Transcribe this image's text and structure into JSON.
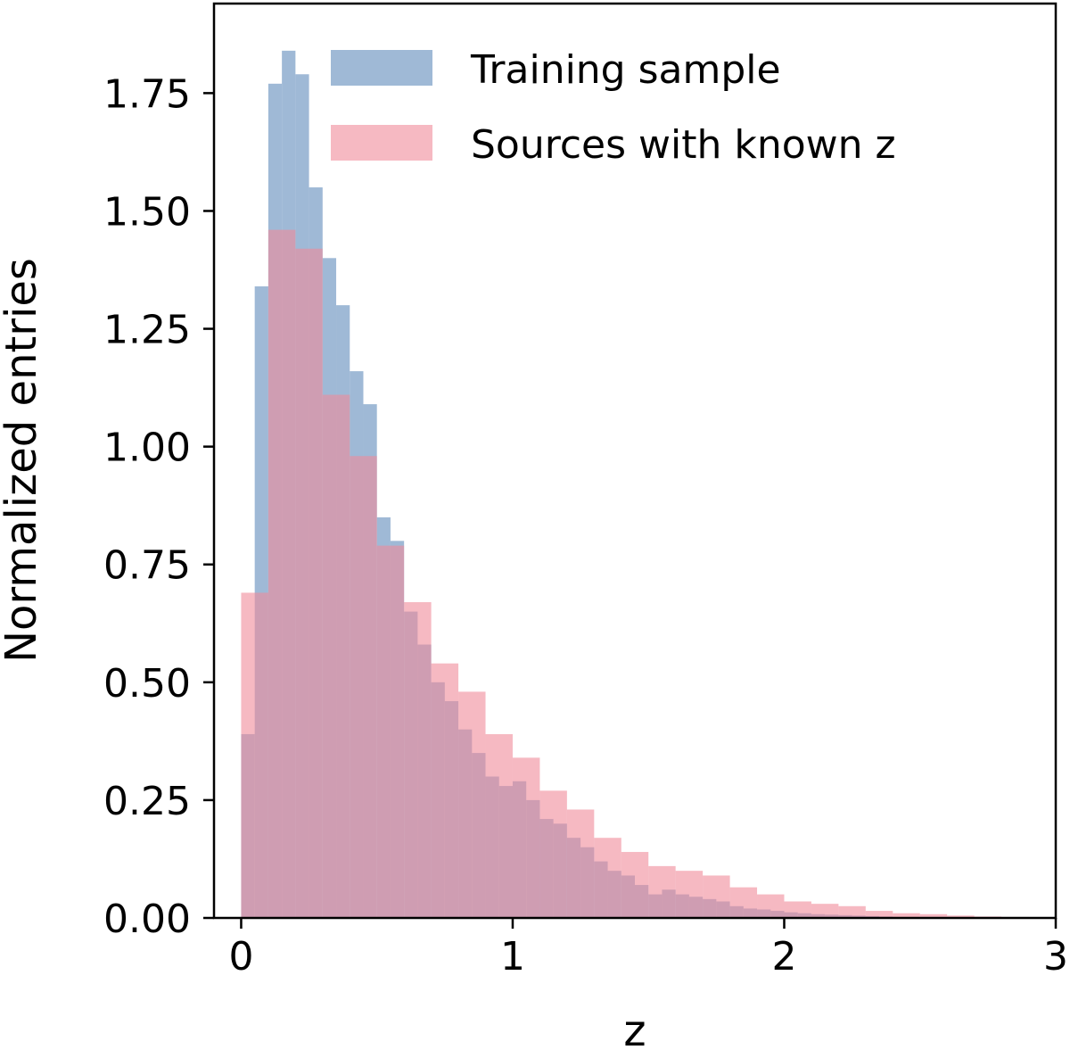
{
  "chart_data": {
    "type": "bar",
    "xlabel": "z",
    "ylabel": "Normalized entries",
    "xlim": [
      -0.1,
      3.0
    ],
    "ylim": [
      0,
      1.94
    ],
    "xticks": [
      0,
      1,
      2,
      3
    ],
    "xtick_labels": [
      "0",
      "1",
      "2",
      "3"
    ],
    "yticks": [
      0,
      0.25,
      0.5,
      0.75,
      1.0,
      1.25,
      1.5,
      1.75
    ],
    "ytick_labels": [
      "0.00",
      "0.25",
      "0.50",
      "0.75",
      "1.00",
      "1.25",
      "1.50",
      "1.75"
    ],
    "legend_position": "top-right",
    "series": [
      {
        "name": "Training sample",
        "color": "#7fa2c8",
        "opacity": 0.75,
        "bin_edges": [
          0.0,
          0.05,
          0.1,
          0.15,
          0.2,
          0.25,
          0.3,
          0.35,
          0.4,
          0.45,
          0.5,
          0.55,
          0.6,
          0.65,
          0.7,
          0.75,
          0.8,
          0.85,
          0.9,
          0.95,
          1.0,
          1.05,
          1.1,
          1.15,
          1.2,
          1.25,
          1.3,
          1.35,
          1.4,
          1.45,
          1.5,
          1.55,
          1.6,
          1.65,
          1.7,
          1.75,
          1.8,
          1.85,
          1.9,
          1.95,
          2.0,
          2.05,
          2.1,
          2.15,
          2.2,
          2.25,
          2.3,
          2.35,
          2.4,
          2.45,
          2.5,
          2.55,
          2.6,
          2.65,
          2.7,
          2.75,
          2.8,
          2.85
        ],
        "values": [
          0.39,
          1.34,
          1.77,
          1.84,
          1.79,
          1.55,
          1.4,
          1.3,
          1.16,
          1.09,
          0.85,
          0.8,
          0.65,
          0.58,
          0.5,
          0.46,
          0.4,
          0.35,
          0.3,
          0.28,
          0.29,
          0.25,
          0.21,
          0.2,
          0.17,
          0.15,
          0.12,
          0.1,
          0.09,
          0.07,
          0.05,
          0.06,
          0.05,
          0.045,
          0.04,
          0.035,
          0.025,
          0.02,
          0.018,
          0.015,
          0.012,
          0.01,
          0.008,
          0.007,
          0.006,
          0.005,
          0.004,
          0.003,
          0.002,
          0.002,
          0.0015,
          0.001,
          0.001,
          0.001,
          0.0005,
          0.0005,
          0.0005
        ]
      },
      {
        "name": "Sources with known z",
        "color": "#f08a9a",
        "opacity": 0.6,
        "bin_edges": [
          0.0,
          0.1,
          0.2,
          0.3,
          0.4,
          0.5,
          0.6,
          0.7,
          0.8,
          0.9,
          1.0,
          1.1,
          1.2,
          1.3,
          1.4,
          1.5,
          1.6,
          1.7,
          1.8,
          1.9,
          2.0,
          2.1,
          2.2,
          2.3,
          2.4,
          2.5,
          2.6,
          2.7,
          2.8,
          2.9
        ],
        "values": [
          0.69,
          1.46,
          1.42,
          1.11,
          0.98,
          0.79,
          0.67,
          0.54,
          0.48,
          0.39,
          0.34,
          0.27,
          0.23,
          0.17,
          0.14,
          0.11,
          0.1,
          0.09,
          0.065,
          0.05,
          0.035,
          0.03,
          0.025,
          0.015,
          0.01,
          0.008,
          0.005,
          0.003,
          0.002
        ]
      }
    ]
  }
}
